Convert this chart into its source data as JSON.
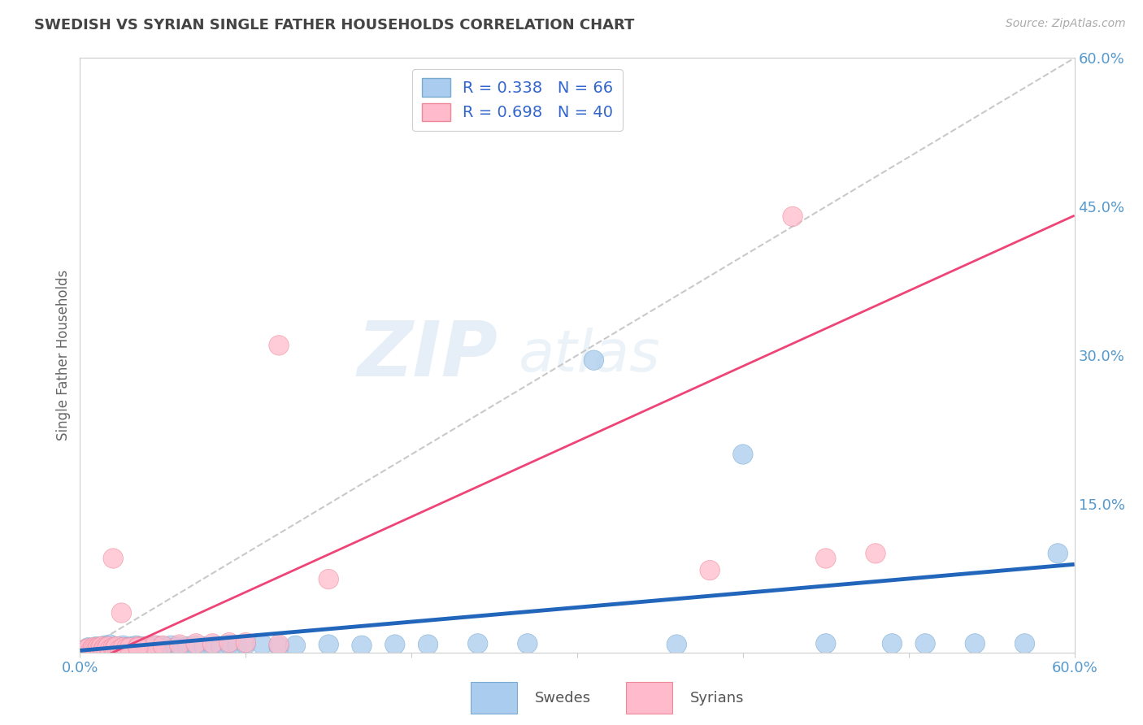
{
  "title": "SWEDISH VS SYRIAN SINGLE FATHER HOUSEHOLDS CORRELATION CHART",
  "source_text": "Source: ZipAtlas.com",
  "ylabel": "Single Father Households",
  "x_min": 0.0,
  "x_max": 0.6,
  "y_min": 0.0,
  "y_max": 0.6,
  "y_ticks_right": [
    0.15,
    0.3,
    0.45,
    0.6
  ],
  "y_tick_labels_right": [
    "15.0%",
    "30.0%",
    "45.0%",
    "60.0%"
  ],
  "swedes_color": "#aaccee",
  "syrians_color": "#ffbbcc",
  "swedes_edge_color": "#7aaad0",
  "syrians_edge_color": "#ee8899",
  "swedes_line_color": "#2266bb",
  "syrians_line_color": "#ee4477",
  "ref_line_color": "#c0c0c0",
  "legend_swedes_label": "R = 0.338   N = 66",
  "legend_syrians_label": "R = 0.698   N = 40",
  "watermark_zip": "ZIP",
  "watermark_atlas": "atlas",
  "background_color": "#ffffff",
  "grid_color": "#dddddd",
  "title_color": "#444444",
  "axis_tick_color": "#5599cc",
  "swedes_scatter_x": [
    0.005,
    0.008,
    0.01,
    0.01,
    0.012,
    0.013,
    0.015,
    0.015,
    0.016,
    0.017,
    0.018,
    0.018,
    0.02,
    0.02,
    0.021,
    0.022,
    0.023,
    0.024,
    0.025,
    0.026,
    0.027,
    0.028,
    0.03,
    0.031,
    0.032,
    0.033,
    0.034,
    0.035,
    0.037,
    0.038,
    0.04,
    0.042,
    0.044,
    0.046,
    0.048,
    0.05,
    0.052,
    0.055,
    0.058,
    0.06,
    0.065,
    0.07,
    0.075,
    0.08,
    0.085,
    0.09,
    0.095,
    0.1,
    0.11,
    0.12,
    0.13,
    0.15,
    0.17,
    0.19,
    0.21,
    0.24,
    0.27,
    0.31,
    0.36,
    0.4,
    0.45,
    0.49,
    0.51,
    0.54,
    0.57,
    0.59
  ],
  "swedes_scatter_y": [
    0.005,
    0.003,
    0.004,
    0.006,
    0.003,
    0.005,
    0.004,
    0.007,
    0.003,
    0.006,
    0.004,
    0.008,
    0.003,
    0.005,
    0.004,
    0.006,
    0.003,
    0.005,
    0.004,
    0.007,
    0.003,
    0.005,
    0.004,
    0.006,
    0.003,
    0.005,
    0.007,
    0.004,
    0.006,
    0.005,
    0.005,
    0.006,
    0.004,
    0.007,
    0.005,
    0.006,
    0.005,
    0.007,
    0.005,
    0.006,
    0.006,
    0.007,
    0.006,
    0.007,
    0.006,
    0.008,
    0.007,
    0.008,
    0.008,
    0.006,
    0.007,
    0.008,
    0.007,
    0.008,
    0.008,
    0.009,
    0.009,
    0.295,
    0.008,
    0.2,
    0.009,
    0.009,
    0.009,
    0.009,
    0.009,
    0.1
  ],
  "syrians_scatter_x": [
    0.003,
    0.005,
    0.007,
    0.008,
    0.009,
    0.01,
    0.011,
    0.012,
    0.013,
    0.014,
    0.015,
    0.016,
    0.017,
    0.018,
    0.02,
    0.021,
    0.022,
    0.024,
    0.026,
    0.028,
    0.03,
    0.035,
    0.04,
    0.045,
    0.05,
    0.06,
    0.07,
    0.08,
    0.09,
    0.1,
    0.12,
    0.15,
    0.38,
    0.43,
    0.45,
    0.48,
    0.12,
    0.02,
    0.025,
    0.035
  ],
  "syrians_scatter_y": [
    0.003,
    0.004,
    0.003,
    0.005,
    0.004,
    0.003,
    0.005,
    0.004,
    0.006,
    0.003,
    0.005,
    0.004,
    0.006,
    0.003,
    0.005,
    0.004,
    0.006,
    0.003,
    0.005,
    0.004,
    0.005,
    0.006,
    0.006,
    0.007,
    0.007,
    0.008,
    0.009,
    0.009,
    0.01,
    0.01,
    0.008,
    0.074,
    0.083,
    0.44,
    0.095,
    0.1,
    0.31,
    0.095,
    0.04,
    0.005
  ],
  "swedes_line_slope": 0.145,
  "swedes_line_intercept": 0.002,
  "syrians_line_slope": 0.76,
  "syrians_line_intercept": -0.015
}
